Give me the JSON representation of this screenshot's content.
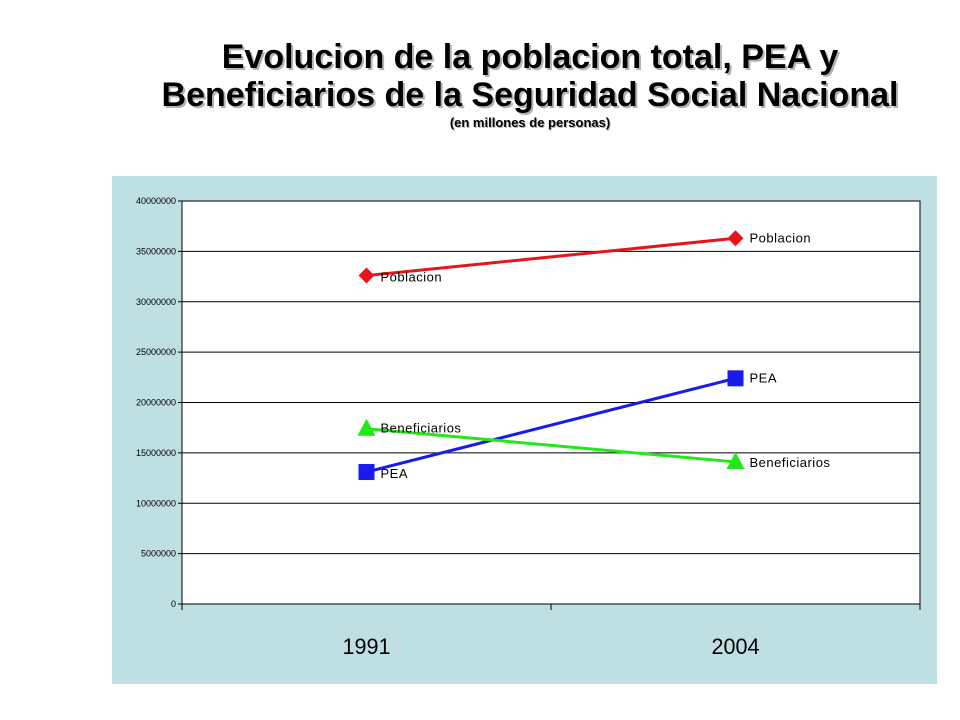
{
  "title": "Evolucion de la poblacion total, PEA y",
  "title_line2": "Beneficiarios de la Seguridad Social Nacional",
  "subtitle": "(en millones de personas)",
  "colors": {
    "plot_bg": "#ffffff",
    "panel_bg": "#bfe0e3",
    "poblacion": "#e8141b",
    "pea": "#1a1aee",
    "beneficiarios": "#22e81a",
    "grid": "#000000"
  },
  "chart_data": {
    "type": "line",
    "title": "Evolucion de la poblacion total, PEA y Beneficiarios de la Seguridad Social Nacional",
    "subtitle": "(en millones de personas)",
    "categories": [
      "1991",
      "2004"
    ],
    "series": [
      {
        "name": "Poblacion",
        "values": [
          32600000,
          36300000
        ],
        "marker": "diamond",
        "color": "#e8141b"
      },
      {
        "name": "PEA",
        "values": [
          13100000,
          22400000
        ],
        "marker": "square",
        "color": "#1a1aee"
      },
      {
        "name": "Beneficiarios",
        "values": [
          17400000,
          14100000
        ],
        "marker": "triangle",
        "color": "#22e81a"
      }
    ],
    "yticks": [
      "0",
      "5000000",
      "10000000",
      "15000000",
      "20000000",
      "25000000",
      "30000000",
      "35000000",
      "40000000"
    ],
    "ylim": [
      0,
      40000000
    ],
    "grid": true,
    "legend": "none",
    "data_labels": "series names at each point"
  }
}
